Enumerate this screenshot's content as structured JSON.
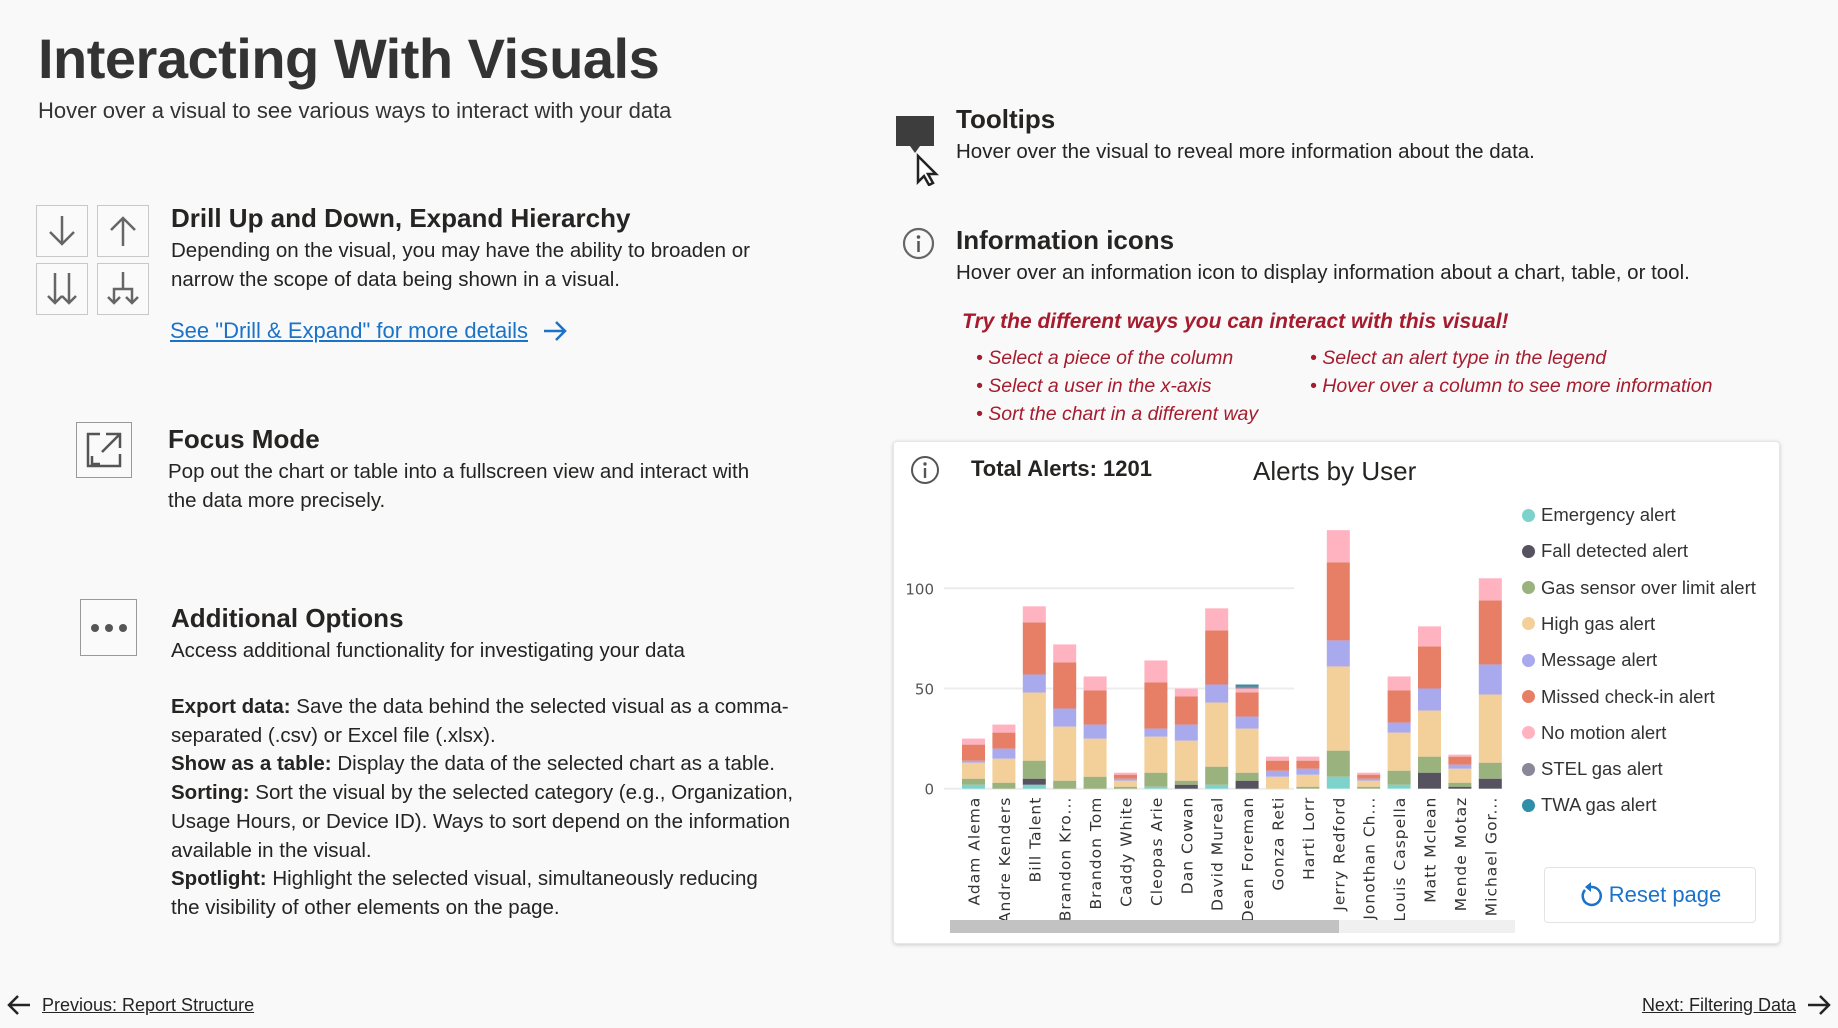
{
  "header": {
    "title": "Interacting With Visuals",
    "subtitle": "Hover over a visual to see various ways to interact with your data"
  },
  "drill": {
    "title": "Drill Up and Down, Expand Hierarchy",
    "desc1": "Depending on the visual, you may have the ability to broaden or",
    "desc2": "narrow the scope of data being shown in a visual.",
    "link": "See \"Drill & Expand\" for more details"
  },
  "focus": {
    "title": "Focus Mode",
    "desc1": "Pop out the chart or table into a fullscreen view and interact with",
    "desc2": "the data more precisely."
  },
  "options": {
    "title": "Additional Options",
    "desc": "Access additional functionality for investigating your data",
    "lines": [
      {
        "b": "Export data:",
        "t": " Save the data behind the selected visual as a comma-"
      },
      {
        "b": "",
        "t": "separated (.csv) or Excel file (.xlsx)."
      },
      {
        "b": "Show as a table:",
        "t": " Display the data of the selected chart as a table."
      },
      {
        "b": "Sorting:",
        "t": " Sort the visual by the selected category (e.g., Organization,"
      },
      {
        "b": "",
        "t": "Usage Hours, or Device ID). Ways to sort depend on the information"
      },
      {
        "b": "",
        "t": "available in the visual."
      },
      {
        "b": "Spotlight:",
        "t": " Highlight the selected visual, simultaneously reducing"
      },
      {
        "b": "",
        "t": "the visibility of other elements on the page."
      }
    ]
  },
  "tooltips": {
    "title": "Tooltips",
    "desc": "Hover over the visual to reveal more information about the data."
  },
  "info": {
    "title": "Information icons",
    "desc": "Hover over an information icon to display information about a chart, table, or tool."
  },
  "tryit": {
    "heading": "Try the different ways you can interact with this visual!",
    "col1": [
      "Select a piece of the column",
      "Select a user in the x-axis",
      "Sort the chart in a different way"
    ],
    "col2": [
      "Select an alert type in the legend",
      "Hover over a column to see more information"
    ]
  },
  "footer": {
    "prev": "Previous: Report Structure",
    "next": "Next: Filtering Data"
  },
  "card": {
    "total": "Total Alerts: 1201",
    "reset": "Reset page"
  },
  "chart_data": {
    "type": "bar",
    "stacked": true,
    "title": "Alerts by User",
    "ylim": [
      0,
      130
    ],
    "yticks": [
      "0",
      "50",
      "100"
    ],
    "ytick_values": [
      0,
      50,
      100
    ],
    "categories": [
      "Adam Alema",
      "Andre Kenders",
      "Bill Talent",
      "Brandon Kro...",
      "Brandon Tom",
      "Caddy White",
      "Cleopas Arie",
      "Dan Cowan",
      "David Mureal",
      "Dean Foreman",
      "Gonza Reti",
      "Harti Lorr",
      "Jerry Redford",
      "Jonothan Ch...",
      "Louis Caspella",
      "Matt Mclean",
      "Mende Motaz",
      "Michael Gor..."
    ],
    "legend_position": "right",
    "series": [
      {
        "name": "Emergency alert",
        "color": "#7dd3cc",
        "values": [
          2,
          0,
          2,
          0,
          0,
          0,
          1,
          0,
          2,
          0,
          0,
          0,
          6,
          0,
          2,
          0,
          0,
          0
        ]
      },
      {
        "name": "Fall detected alert",
        "color": "#56525f",
        "values": [
          0,
          0,
          3,
          0,
          0,
          0,
          0,
          2,
          0,
          4,
          0,
          0,
          0,
          0,
          0,
          8,
          1,
          5
        ]
      },
      {
        "name": "Gas sensor over limit alert",
        "color": "#9ab27d",
        "values": [
          3,
          3,
          9,
          4,
          6,
          1,
          7,
          2,
          9,
          4,
          0,
          1,
          13,
          1,
          7,
          8,
          2,
          8
        ]
      },
      {
        "name": "High gas alert",
        "color": "#f3cf9a",
        "values": [
          8,
          12,
          34,
          27,
          19,
          3,
          18,
          20,
          32,
          22,
          6,
          6,
          42,
          3,
          19,
          23,
          7,
          34
        ]
      },
      {
        "name": "Message alert",
        "color": "#a9a9ee",
        "values": [
          1,
          5,
          9,
          9,
          7,
          1,
          4,
          8,
          9,
          6,
          3,
          3,
          13,
          1,
          5,
          11,
          2,
          15
        ]
      },
      {
        "name": "Missed check-in alert",
        "color": "#e67f65",
        "values": [
          8,
          8,
          26,
          23,
          17,
          2,
          23,
          14,
          27,
          12,
          5,
          4,
          39,
          2,
          16,
          21,
          4,
          32
        ]
      },
      {
        "name": "No motion alert",
        "color": "#ffb3c0",
        "values": [
          3,
          4,
          8,
          9,
          7,
          1,
          11,
          4,
          11,
          2,
          2,
          2,
          16,
          1,
          7,
          10,
          1,
          11
        ]
      },
      {
        "name": "STEL gas alert",
        "color": "#8a8799",
        "values": [
          0,
          0,
          0,
          0,
          0,
          0,
          0,
          0,
          0,
          1,
          0,
          0,
          0,
          0,
          0,
          0,
          0,
          0
        ]
      },
      {
        "name": "TWA gas alert",
        "color": "#2f8fa8",
        "values": [
          0,
          0,
          0,
          0,
          0,
          0,
          0,
          0,
          0,
          1,
          0,
          0,
          0,
          0,
          0,
          0,
          0,
          0
        ]
      }
    ]
  }
}
